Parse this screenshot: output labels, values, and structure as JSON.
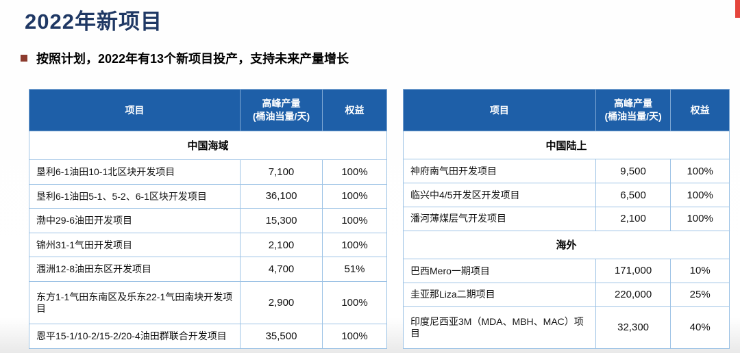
{
  "title": "2022年新项目",
  "bullet": "按照计划，2022年有13个新项目投产，支持未来产量增长",
  "columns": {
    "project": "项目",
    "peak": "高峰产量\n(桶油当量/天)",
    "equity": "权益"
  },
  "left_table": {
    "groups": [
      {
        "section": "中国海域",
        "rows": [
          {
            "project": "垦利6-1油田10-1北区块开发项目",
            "peak": "7,100",
            "equity": "100%"
          },
          {
            "project": "垦利6-1油田5-1、5-2、6-1区块开发项目",
            "peak": "36,100",
            "equity": "100%"
          },
          {
            "project": "渤中29-6油田开发项目",
            "peak": "15,300",
            "equity": "100%"
          },
          {
            "project": "锦州31-1气田开发项目",
            "peak": "2,100",
            "equity": "100%"
          },
          {
            "project": "涠洲12-8油田东区开发项目",
            "peak": "4,700",
            "equity": "51%"
          },
          {
            "project": "东方1-1气田东南区及乐东22-1气田南块开发项目",
            "peak": "2,900",
            "equity": "100%"
          },
          {
            "project": "恩平15-1/10-2/15-2/20-4油田群联合开发项目",
            "peak": "35,500",
            "equity": "100%"
          }
        ]
      }
    ]
  },
  "right_table": {
    "groups": [
      {
        "section": "中国陆上",
        "rows": [
          {
            "project": "神府南气田开发项目",
            "peak": "9,500",
            "equity": "100%"
          },
          {
            "project": "临兴中4/5开发区开发项目",
            "peak": "6,500",
            "equity": "100%"
          },
          {
            "project": "潘河薄煤层气开发项目",
            "peak": "2,100",
            "equity": "100%"
          }
        ]
      },
      {
        "section": "海外",
        "rows": [
          {
            "project": "巴西Mero一期项目",
            "peak": "171,000",
            "equity": "10%"
          },
          {
            "project": "圭亚那Liza二期项目",
            "peak": "220,000",
            "equity": "25%"
          },
          {
            "project": "印度尼西亚3M（MDA、MBH、MAC）项目",
            "peak": "32,300",
            "equity": "40%"
          }
        ]
      }
    ]
  },
  "colors": {
    "header_bg": "#1E5FA8",
    "title_color": "#1F3864",
    "grid_line": "#9CC2E5",
    "bullet_color": "#8C3B2E",
    "accent_red": "#E5453C"
  }
}
